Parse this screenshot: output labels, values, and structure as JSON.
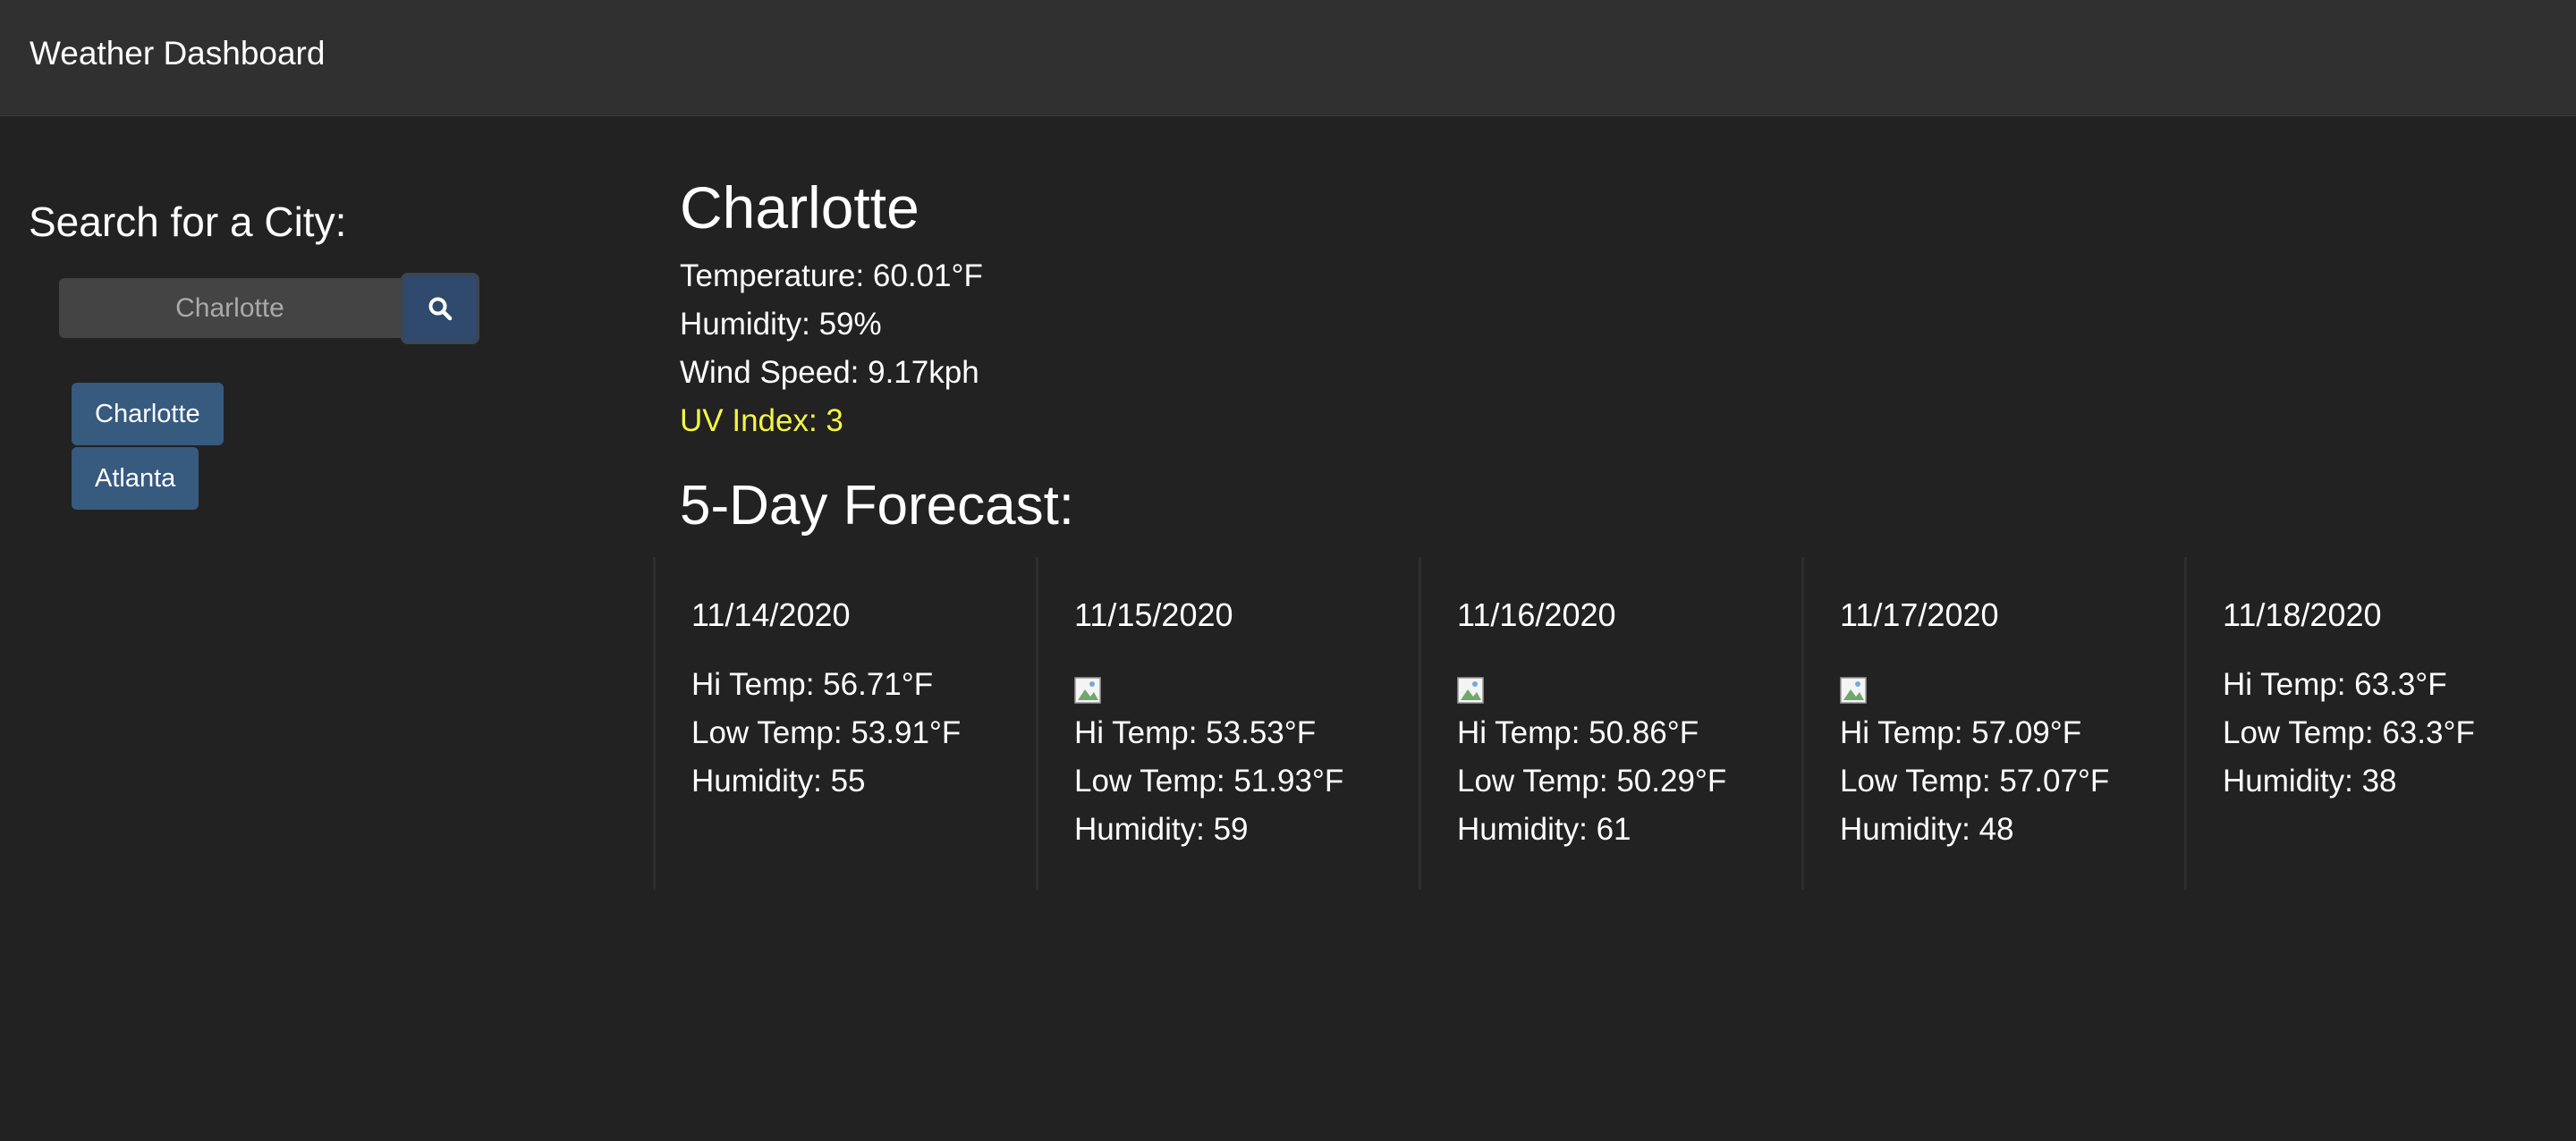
{
  "app": {
    "title": "Weather Dashboard"
  },
  "sidebar": {
    "title": "Search for a City:",
    "search": {
      "value": "Charlotte",
      "placeholder": "Charlotte",
      "button_icon": "search-icon"
    },
    "history": [
      {
        "label": "Charlotte"
      },
      {
        "label": "Atlanta"
      }
    ]
  },
  "current": {
    "city": "Charlotte",
    "temperature": "Temperature: 60.01°F",
    "humidity": "Humidity: 59%",
    "wind": "Wind Speed: 9.17kph",
    "uv": "UV Index: 3",
    "uv_color": "#f5f542"
  },
  "forecast": {
    "title": "5-Day Forecast:",
    "days": [
      {
        "date": "11/14/2020",
        "icon": "",
        "hi": "Hi Temp: 56.71°F",
        "low": "Low Temp: 53.91°F",
        "humidity": "Humidity: 55"
      },
      {
        "date": "11/15/2020",
        "icon": "broken-image-icon",
        "hi": "Hi Temp: 53.53°F",
        "low": "Low Temp: 51.93°F",
        "humidity": "Humidity: 59"
      },
      {
        "date": "11/16/2020",
        "icon": "broken-image-icon",
        "hi": "Hi Temp: 50.86°F",
        "low": "Low Temp: 50.29°F",
        "humidity": "Humidity: 61"
      },
      {
        "date": "11/17/2020",
        "icon": "broken-image-icon",
        "hi": "Hi Temp: 57.09°F",
        "low": "Low Temp: 57.07°F",
        "humidity": "Humidity: 48"
      },
      {
        "date": "11/18/2020",
        "icon": "",
        "hi": "Hi Temp: 63.3°F",
        "low": "Low Temp: 63.3°F",
        "humidity": "Humidity: 38"
      }
    ]
  },
  "colors": {
    "background": "#222222",
    "navbar": "#303030",
    "accent": "#375a7f",
    "search_button": "#2f4a6c",
    "input_bg": "#444444"
  }
}
